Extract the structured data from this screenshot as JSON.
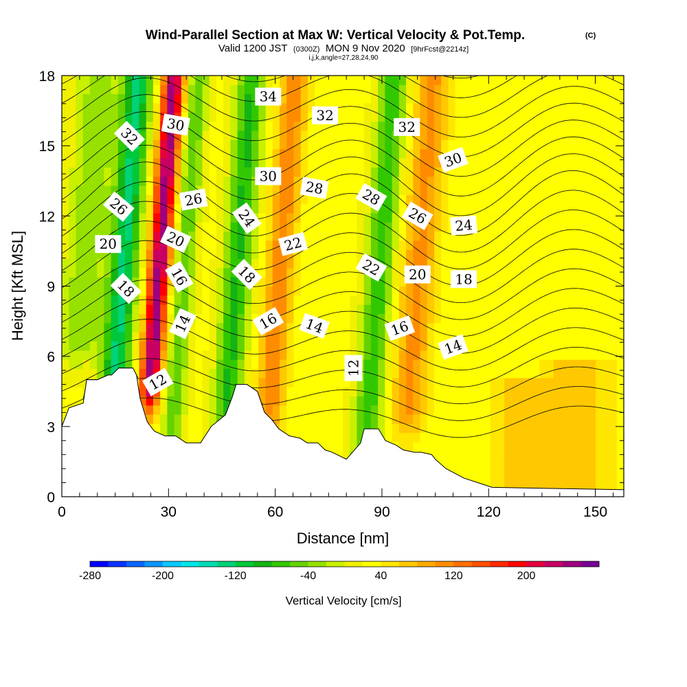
{
  "chart_data": {
    "type": "heatmap",
    "title": "Wind-Parallel Section at Max W: Vertical Velocity & Pot.Temp.",
    "title_mark": "(C)",
    "subtitle_parts": [
      "Valid 1200 JST",
      "(0300Z)",
      "MON 9 Nov 2020",
      "[9hrFcst@2214z]"
    ],
    "info_line": "i,j,k,angle=27,28,24,90",
    "xlabel": "Distance [nm]",
    "ylabel": "Height [Kft MSL]",
    "xlim": [
      0,
      158
    ],
    "ylim": [
      0,
      18
    ],
    "x_ticks": [
      0,
      30,
      60,
      90,
      120,
      150
    ],
    "y_ticks": [
      0,
      3,
      6,
      9,
      12,
      15,
      18
    ],
    "colorbar": {
      "title": "Vertical Velocity [cm/s]",
      "min": -280,
      "max": 280,
      "step": 20,
      "labels": [
        -280,
        -200,
        -120,
        -40,
        40,
        120,
        200
      ],
      "colors": [
        "#0000ff",
        "#0a32ff",
        "#0a64ff",
        "#0a96ff",
        "#0ac8ff",
        "#00e6e6",
        "#00dcb4",
        "#00d278",
        "#00c83c",
        "#14b414",
        "#32c800",
        "#64d200",
        "#96e100",
        "#c8f000",
        "#f0f000",
        "#ffff00",
        "#ffe600",
        "#ffc800",
        "#ffaa00",
        "#ff8c00",
        "#ff6e00",
        "#ff5000",
        "#ff2800",
        "#ff0000",
        "#e6003c",
        "#c80064",
        "#a0007c",
        "#780096"
      ]
    },
    "vertical_velocity_features": [
      {
        "x": 6,
        "w": 6,
        "base": 7,
        "top": 18,
        "v": -60,
        "tilt": 0.5
      },
      {
        "x": 17,
        "w": 4,
        "base": 5,
        "top": 18,
        "v": -150,
        "tilt": 0.5
      },
      {
        "x": 27,
        "w": 3,
        "base": 5,
        "top": 18,
        "v": 230,
        "tilt": 0.5
      },
      {
        "x": 34,
        "w": 3,
        "base": 3,
        "top": 18,
        "v": -80,
        "tilt": 0.5
      },
      {
        "x": 49,
        "w": 4,
        "base": 4,
        "top": 18,
        "v": -110,
        "tilt": 0.5
      },
      {
        "x": 61,
        "w": 4,
        "base": 4,
        "top": 18,
        "v": 90,
        "tilt": 0.5
      },
      {
        "x": 89,
        "w": 4,
        "base": 2,
        "top": 18,
        "v": -100,
        "tilt": 0.5
      },
      {
        "x": 100,
        "w": 5,
        "base": 4,
        "top": 18,
        "v": 80,
        "tilt": 0.5
      },
      {
        "x": 145,
        "w": 10,
        "base": 0,
        "top": 6,
        "v": 50,
        "tilt": 0
      },
      {
        "x": 128,
        "w": 8,
        "base": 0,
        "top": 5,
        "v": 40,
        "tilt": 0
      }
    ],
    "terrain": [
      [
        0,
        3.0
      ],
      [
        2,
        3.8
      ],
      [
        6,
        4.0
      ],
      [
        7,
        5.0
      ],
      [
        10,
        5.0
      ],
      [
        13,
        5.2
      ],
      [
        14,
        5.2
      ],
      [
        16,
        5.5
      ],
      [
        20,
        5.5
      ],
      [
        21,
        5.2
      ],
      [
        22,
        4.2
      ],
      [
        24,
        3.2
      ],
      [
        26,
        2.8
      ],
      [
        29,
        2.6
      ],
      [
        32,
        2.6
      ],
      [
        35,
        2.3
      ],
      [
        39,
        2.3
      ],
      [
        42,
        3.0
      ],
      [
        46,
        3.5
      ],
      [
        48,
        4.3
      ],
      [
        49,
        4.8
      ],
      [
        52,
        4.8
      ],
      [
        55,
        4.5
      ],
      [
        57,
        3.6
      ],
      [
        59,
        3.3
      ],
      [
        61,
        2.9
      ],
      [
        64,
        2.6
      ],
      [
        67,
        2.5
      ],
      [
        69,
        2.3
      ],
      [
        72,
        2.3
      ],
      [
        74,
        2.0
      ],
      [
        76,
        1.9
      ],
      [
        80,
        1.6
      ],
      [
        84,
        2.3
      ],
      [
        85,
        2.9
      ],
      [
        89,
        2.9
      ],
      [
        91,
        2.4
      ],
      [
        94,
        2.2
      ],
      [
        96,
        2.0
      ],
      [
        99,
        1.9
      ],
      [
        101,
        1.9
      ],
      [
        104,
        1.8
      ],
      [
        105,
        1.6
      ],
      [
        108,
        1.2
      ],
      [
        113,
        0.8
      ],
      [
        117,
        0.6
      ],
      [
        121,
        0.4
      ],
      [
        158,
        0.3
      ]
    ],
    "isentropes": [
      10,
      11,
      12,
      13,
      14,
      15,
      16,
      17,
      18,
      19,
      20,
      21,
      22,
      23,
      24,
      25,
      26,
      27,
      28,
      29,
      30,
      31,
      32,
      33,
      34,
      35,
      36,
      37,
      38
    ],
    "contour_labels": [
      {
        "text": "34",
        "x": 58,
        "y": 17.1,
        "angle": 0
      },
      {
        "text": "32",
        "x": 74,
        "y": 16.3,
        "angle": 0
      },
      {
        "text": "32",
        "x": 97,
        "y": 15.8,
        "angle": 0
      },
      {
        "text": "32",
        "x": 19,
        "y": 15.4,
        "angle": 45
      },
      {
        "text": "30",
        "x": 32,
        "y": 15.9,
        "angle": 10
      },
      {
        "text": "30",
        "x": 58,
        "y": 13.7,
        "angle": 0
      },
      {
        "text": "30",
        "x": 110,
        "y": 14.4,
        "angle": -20
      },
      {
        "text": "28",
        "x": 71,
        "y": 13.2,
        "angle": 10
      },
      {
        "text": "28",
        "x": 87,
        "y": 12.8,
        "angle": 30
      },
      {
        "text": "26",
        "x": 16,
        "y": 12.4,
        "angle": 40
      },
      {
        "text": "26",
        "x": 37,
        "y": 12.7,
        "angle": -10
      },
      {
        "text": "26",
        "x": 100,
        "y": 12.0,
        "angle": 30
      },
      {
        "text": "24",
        "x": 52,
        "y": 11.9,
        "angle": 55
      },
      {
        "text": "24",
        "x": 113,
        "y": 11.6,
        "angle": -5
      },
      {
        "text": "22",
        "x": 65,
        "y": 10.8,
        "angle": -15
      },
      {
        "text": "22",
        "x": 87,
        "y": 9.8,
        "angle": 30
      },
      {
        "text": "20",
        "x": 13,
        "y": 10.8,
        "angle": 0
      },
      {
        "text": "20",
        "x": 32,
        "y": 11.0,
        "angle": 25
      },
      {
        "text": "20",
        "x": 100,
        "y": 9.5,
        "angle": 0
      },
      {
        "text": "18",
        "x": 18,
        "y": 8.9,
        "angle": 45
      },
      {
        "text": "18",
        "x": 52,
        "y": 9.5,
        "angle": 45
      },
      {
        "text": "18",
        "x": 113,
        "y": 9.3,
        "angle": 0
      },
      {
        "text": "16",
        "x": 33,
        "y": 9.4,
        "angle": 60
      },
      {
        "text": "16",
        "x": 58,
        "y": 7.5,
        "angle": -30
      },
      {
        "text": "16",
        "x": 95,
        "y": 7.2,
        "angle": -20
      },
      {
        "text": "14",
        "x": 34,
        "y": 7.4,
        "angle": -65
      },
      {
        "text": "14",
        "x": 71,
        "y": 7.3,
        "angle": 20
      },
      {
        "text": "14",
        "x": 110,
        "y": 6.4,
        "angle": -20
      },
      {
        "text": "12",
        "x": 27,
        "y": 4.9,
        "angle": -30
      },
      {
        "text": "12",
        "x": 82,
        "y": 5.5,
        "angle": -90
      }
    ]
  }
}
